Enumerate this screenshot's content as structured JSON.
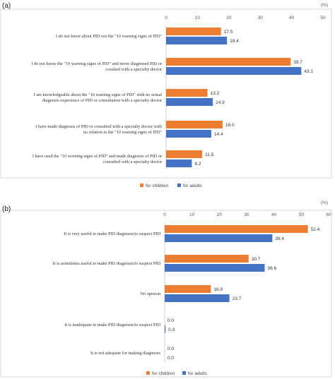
{
  "colors": {
    "children": "#ED7D31",
    "adults": "#4472C4"
  },
  "chart_data": [
    {
      "type": "bar",
      "orientation": "horizontal",
      "panel": "(a)",
      "unit": "(%)",
      "xlim": [
        0,
        50
      ],
      "ticks": [
        0,
        10,
        20,
        30,
        40,
        50
      ],
      "grid": false,
      "legend_placement": "bottom",
      "categories": [
        [
          "I do not know about PID nor the \"10 warning signs of PID\""
        ],
        [
          "I do not know the \"10 warning signs of PID\" and never diagnosed PID or",
          "cosulted with a specialty doctor"
        ],
        [
          "I am knowledgeable about the \"10 warning signs of PID\" with no actual",
          "diagnosis experience of PID or consultation with a specialty doctor"
        ],
        [
          "I have made diagnosis of PID or consulted with a specialty doctor with",
          "no relation to the \"10 warning signs of PID\""
        ],
        [
          "I have used the \"10 worning signs of PID\" and made diagnosis of PID or",
          "consulted with a specialty doctor"
        ]
      ],
      "series": [
        {
          "name": "for children",
          "values": [
            17.5,
            39.7,
            13.2,
            18.0,
            11.5
          ],
          "labels": [
            "17.5",
            "39.7",
            "13.2",
            "18.0",
            "11.5"
          ]
        },
        {
          "name": "for adults",
          "values": [
            19.4,
            43.1,
            14.9,
            14.4,
            8.2
          ],
          "labels": [
            "19.4",
            "43.1",
            "14.9",
            "14.4",
            "8.2"
          ]
        }
      ]
    },
    {
      "type": "bar",
      "orientation": "horizontal",
      "panel": "(b)",
      "unit": "(%)",
      "xlim": [
        0,
        60
      ],
      "ticks": [
        0,
        10,
        20,
        30,
        40,
        50,
        60
      ],
      "grid": false,
      "legend_placement": "bottom",
      "categories": [
        [
          "It is very useful to make PID diagnosis/to suspect PID"
        ],
        [
          "It is sometimes useful to make PID diagnosis/to suspect PID"
        ],
        [
          "No opinion"
        ],
        [
          "It is inadequate to make PID diagnosis/to suspect PID"
        ],
        [
          "It is not adequate for making diagnoses"
        ]
      ],
      "series": [
        {
          "name": "for children",
          "values": [
            52.4,
            30.7,
            16.9,
            0.0,
            0.0
          ],
          "labels": [
            "52.4",
            "30.7",
            "16.9",
            "0.0",
            "0.0"
          ]
        },
        {
          "name": "for adults",
          "values": [
            39.4,
            36.6,
            23.7,
            0.3,
            0.0
          ],
          "labels": [
            "39.4",
            "36.6",
            "23.7",
            "0.3",
            "0.0"
          ]
        }
      ]
    }
  ]
}
